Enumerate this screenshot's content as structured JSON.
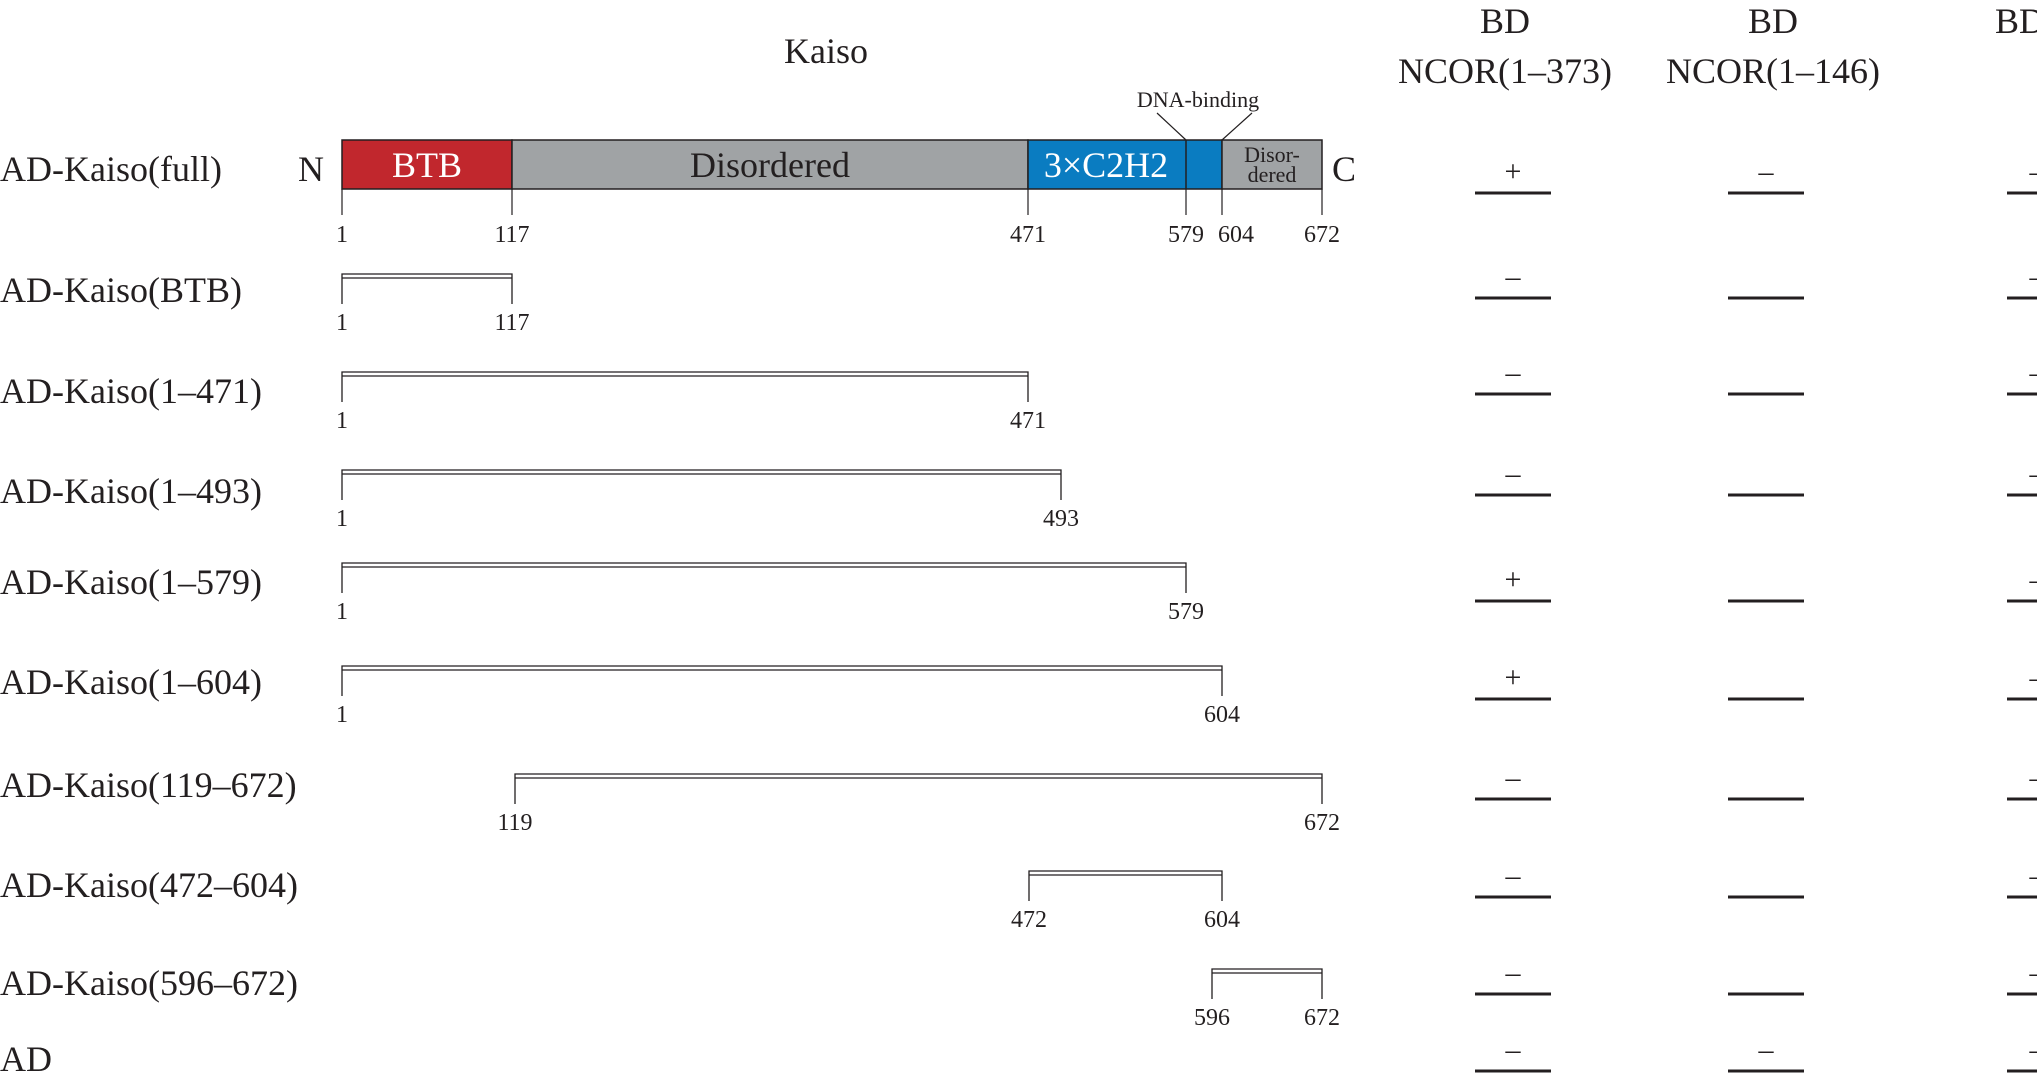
{
  "title": "Kaiso",
  "terminal_n": "N",
  "terminal_c": "C",
  "dna_binding_label": "DNA-binding",
  "domains": [
    {
      "label": "BTB",
      "start": 1,
      "end": 117,
      "color": "#c1272d",
      "text_color": "#ffffff"
    },
    {
      "label": "Disordered",
      "start": 117,
      "end": 471,
      "color": "#a0a3a5",
      "text_color": "#231f20"
    },
    {
      "label": "3×C2H2",
      "start": 471,
      "end": 604,
      "color": "#0a7cc1",
      "text_color": "#ffffff"
    },
    {
      "label_lines": [
        "Disor-",
        "dered"
      ],
      "start": 604,
      "end": 672,
      "color": "#a0a3a5",
      "text_color": "#231f20"
    }
  ],
  "full_positions": [
    "1",
    "117",
    "471",
    "579",
    "604",
    "672"
  ],
  "columns": [
    {
      "line1": "BD",
      "line2": "NCOR(1–373)"
    },
    {
      "line1": "BD",
      "line2": "NCOR(1–146)"
    },
    {
      "line1": "BD",
      "line2": ""
    }
  ],
  "constructs": [
    {
      "name": "AD-Kaiso(full)",
      "start": 1,
      "end": 672,
      "results": [
        "+",
        "–",
        "–"
      ]
    },
    {
      "name": "AD-Kaiso(BTB)",
      "start": 1,
      "end": 117,
      "results": [
        "–",
        "",
        "–"
      ]
    },
    {
      "name": "AD-Kaiso(1–471)",
      "start": 1,
      "end": 471,
      "results": [
        "–",
        "",
        "–"
      ]
    },
    {
      "name": "AD-Kaiso(1–493)",
      "start": 1,
      "end": 493,
      "results": [
        "–",
        "",
        "–"
      ]
    },
    {
      "name": "AD-Kaiso(1–579)",
      "start": 1,
      "end": 579,
      "results": [
        "+",
        "",
        "–"
      ]
    },
    {
      "name": "AD-Kaiso(1–604)",
      "start": 1,
      "end": 604,
      "results": [
        "+",
        "",
        "–"
      ]
    },
    {
      "name": "AD-Kaiso(119–672)",
      "start": 119,
      "end": 672,
      "results": [
        "–",
        "",
        "–"
      ]
    },
    {
      "name": "AD-Kaiso(472–604)",
      "start": 472,
      "end": 604,
      "results": [
        "–",
        "",
        "–"
      ]
    },
    {
      "name": "AD-Kaiso(596–672)",
      "start": 596,
      "end": 672,
      "results": [
        "–",
        "",
        "–"
      ]
    },
    {
      "name": "AD",
      "start": null,
      "end": null,
      "results": [
        "–",
        "–",
        "–"
      ]
    }
  ]
}
